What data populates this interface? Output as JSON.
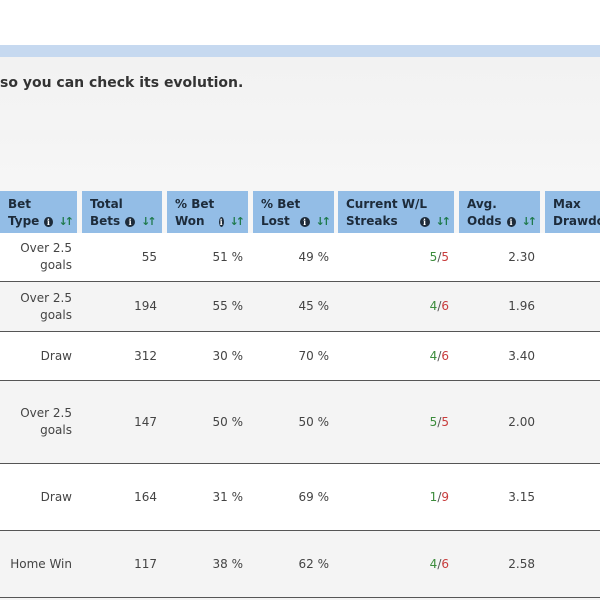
{
  "intro_text": "so you can check its evolution.",
  "table": {
    "headers": [
      {
        "line1": "Bet",
        "line2": "Type",
        "info": true,
        "sort": true
      },
      {
        "line1": "Total",
        "line2": "Bets",
        "info": true,
        "sort": true
      },
      {
        "line1": "% Bet",
        "line2": "Won",
        "info": true,
        "sort": true
      },
      {
        "line1": "% Bet",
        "line2": "Lost",
        "info": true,
        "sort": true
      },
      {
        "line1": "Current W/L",
        "line2": "Streaks",
        "info": true,
        "sort": true
      },
      {
        "line1": "Avg.",
        "line2": "Odds",
        "info": true,
        "sort": true
      },
      {
        "line1": "Max",
        "line2": "Drawdow",
        "info": false,
        "sort": false
      }
    ],
    "rows": [
      {
        "bet_type": "Over 2.5 goals",
        "total_bets": "55",
        "won": "51 %",
        "lost": "49 %",
        "streak_w": "5",
        "streak_l": "5",
        "avg_odds": "2.30"
      },
      {
        "bet_type": "Over 2.5 goals",
        "total_bets": "194",
        "won": "55 %",
        "lost": "45 %",
        "streak_w": "4",
        "streak_l": "6",
        "avg_odds": "1.96"
      },
      {
        "bet_type": "Draw",
        "total_bets": "312",
        "won": "30 %",
        "lost": "70 %",
        "streak_w": "4",
        "streak_l": "6",
        "avg_odds": "3.40"
      },
      {
        "bet_type": "Over 2.5 goals",
        "total_bets": "147",
        "won": "50 %",
        "lost": "50 %",
        "streak_w": "5",
        "streak_l": "5",
        "avg_odds": "2.00"
      },
      {
        "bet_type": "Draw",
        "total_bets": "164",
        "won": "31 %",
        "lost": "69 %",
        "streak_w": "1",
        "streak_l": "9",
        "avg_odds": "3.15"
      },
      {
        "bet_type": "Home Win",
        "total_bets": "117",
        "won": "38 %",
        "lost": "62 %",
        "streak_w": "4",
        "streak_l": "6",
        "avg_odds": "2.58"
      }
    ]
  },
  "colors": {
    "header_bg": "#93bde6",
    "top_bar": "#c6d9f0",
    "win": "#3c8c3c",
    "loss": "#c83c3c",
    "sort_icon": "#1f7a4d"
  },
  "icons": {
    "info": "info-circle-icon",
    "sort": "sort-arrows-icon"
  }
}
